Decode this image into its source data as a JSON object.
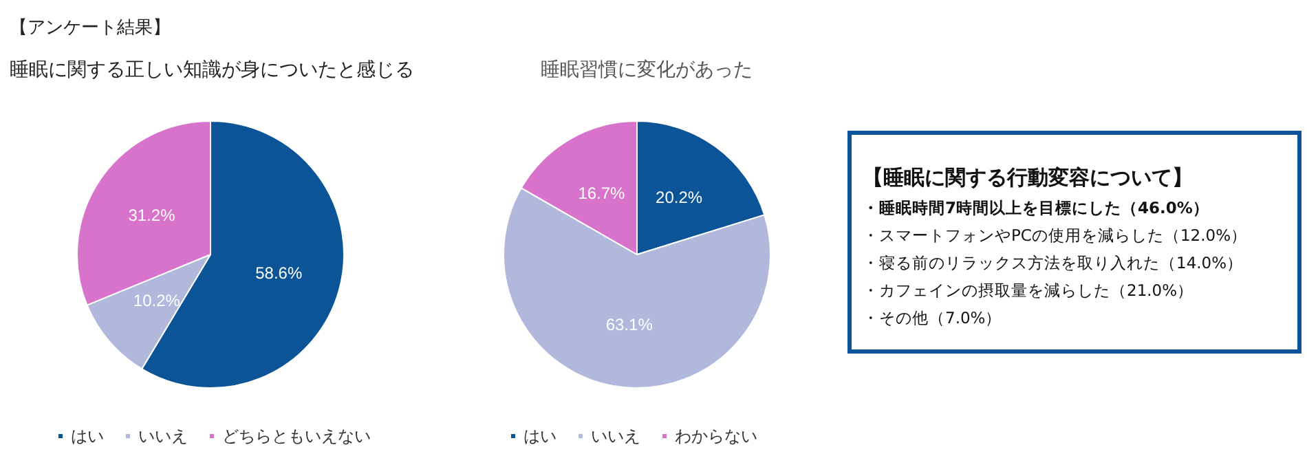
{
  "chart_data": [
    {
      "type": "pie",
      "title": "【アンケート結果】",
      "subtitle": "睡眠に関する正しい知識が身についたと感じる",
      "categories": [
        "はい",
        "いいえ",
        "どちらともいえない"
      ],
      "values": [
        58.6,
        10.2,
        31.2
      ],
      "value_labels": [
        "58.6%",
        "10.2%",
        "31.2%"
      ],
      "colors": [
        "#0b5497",
        "#b0b8dc",
        "#d873cc"
      ],
      "legend": "bottom"
    },
    {
      "type": "pie",
      "title": "睡眠習慣に変化があった",
      "categories": [
        "はい",
        "いいえ",
        "わからない"
      ],
      "values": [
        20.2,
        63.1,
        16.7
      ],
      "value_labels": [
        "20.2%",
        "63.1%",
        "16.7%"
      ],
      "colors": [
        "#0b5497",
        "#b0b8dc",
        "#d873cc"
      ],
      "legend": "bottom"
    },
    {
      "type": "other",
      "title": "【睡眠に関する行動変容について】",
      "annotations": [
        "・睡眠時間7時間以上を目標にした（46.0%）",
        "・スマートフォンやPCの使用を減らした（12.0%）",
        "・寝る前のリラックス方法を取り入れた（14.0%）",
        "・カフェインの摂取量を減らした（21.0%）",
        "・その他（7.0%）"
      ]
    }
  ]
}
